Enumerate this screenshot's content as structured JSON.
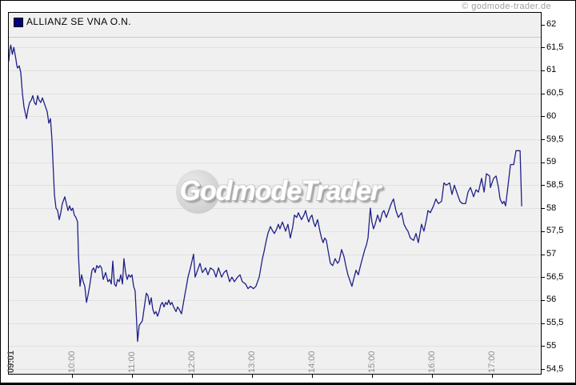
{
  "header": {
    "copyright": "© godmode-trader.de"
  },
  "legend": {
    "label": "ALLIANZ SE VNA O.N.",
    "swatch_color": "#000080"
  },
  "watermark": {
    "text": "GodmodeTrader"
  },
  "colors": {
    "plot_background": "#f0f0f0",
    "plot_border": "#000000",
    "gridline": "#e0e0e0",
    "price_line": "#20208a",
    "tick_mark": "#000000",
    "y_label": "#000000",
    "x_label": "#8f8f8f",
    "x_start_label": "#4a4a4a",
    "copyright": "#9e9e9e"
  },
  "chart_data": {
    "type": "line",
    "title": "ALLIANZ SE VNA O.N.",
    "xlabel": "",
    "ylabel": "",
    "grid": "horizontal",
    "legend_position": "top-left",
    "x_axis": {
      "unit": "time-of-day",
      "start_tick_label": "09:01",
      "tick_labels": [
        "10:00",
        "11:00",
        "12:00",
        "13:00",
        "14:00",
        "15:00",
        "16:00",
        "17:00"
      ],
      "tick_minutes": [
        60,
        120,
        180,
        240,
        300,
        360,
        420,
        480
      ],
      "range_minutes": [
        1,
        510
      ]
    },
    "y_axis": {
      "unit": "EUR",
      "decimal_separator": ",",
      "tick_labels": [
        "62",
        "61,5",
        "61",
        "60,5",
        "60",
        "59,5",
        "59",
        "58,5",
        "58",
        "57,5",
        "57",
        "56,5",
        "56",
        "55,5",
        "55",
        "54,5"
      ],
      "tick_values": [
        62,
        61.5,
        61,
        60.5,
        60,
        59.5,
        59,
        58.5,
        58,
        57.5,
        57,
        56.5,
        56,
        55.5,
        55,
        54.5
      ],
      "range": [
        54.5,
        62
      ]
    },
    "series": [
      {
        "name": "ALLIANZ SE VNA O.N.",
        "color": "#20208a",
        "points_format": "[minutes_after_09:00, price]",
        "points": [
          [
            1,
            61.2
          ],
          [
            2,
            61.45
          ],
          [
            3,
            61.55
          ],
          [
            4.5,
            61.35
          ],
          [
            6,
            61.5
          ],
          [
            8,
            61.25
          ],
          [
            9,
            61.1
          ],
          [
            9.7,
            61.05
          ],
          [
            11.3,
            61.1
          ],
          [
            12.9,
            60.95
          ],
          [
            14.5,
            60.5
          ],
          [
            16.1,
            60.2
          ],
          [
            18.5,
            59.95
          ],
          [
            20,
            60.15
          ],
          [
            21.6,
            60.3
          ],
          [
            23.2,
            60.35
          ],
          [
            24.8,
            60.45
          ],
          [
            26.4,
            60.3
          ],
          [
            28,
            60.25
          ],
          [
            29.6,
            60.45
          ],
          [
            31.1,
            60.35
          ],
          [
            32.7,
            60.3
          ],
          [
            34.3,
            60.4
          ],
          [
            35.9,
            60.3
          ],
          [
            37.5,
            60.2
          ],
          [
            39.1,
            60.1
          ],
          [
            40.7,
            59.85
          ],
          [
            42.3,
            59.95
          ],
          [
            43.8,
            59.5
          ],
          [
            45.4,
            58.7
          ],
          [
            46.2,
            58.3
          ],
          [
            47.8,
            58.0
          ],
          [
            49.4,
            57.95
          ],
          [
            51,
            57.75
          ],
          [
            52.6,
            57.9
          ],
          [
            54.1,
            58.1
          ],
          [
            56.5,
            58.25
          ],
          [
            58.1,
            58.1
          ],
          [
            59.7,
            57.95
          ],
          [
            61.3,
            58.05
          ],
          [
            62.9,
            57.95
          ],
          [
            64.5,
            58.0
          ],
          [
            66,
            57.85
          ],
          [
            67.6,
            57.8
          ],
          [
            69.2,
            57.7
          ],
          [
            70,
            57.0
          ],
          [
            71.6,
            56.3
          ],
          [
            73.2,
            56.55
          ],
          [
            74.8,
            56.4
          ],
          [
            76.4,
            56.3
          ],
          [
            78,
            55.95
          ],
          [
            79.5,
            56.1
          ],
          [
            81.1,
            56.3
          ],
          [
            83.5,
            56.65
          ],
          [
            85.1,
            56.7
          ],
          [
            86.7,
            56.6
          ],
          [
            88.3,
            56.75
          ],
          [
            89.9,
            56.7
          ],
          [
            91.4,
            56.75
          ],
          [
            93,
            56.7
          ],
          [
            94.6,
            56.45
          ],
          [
            97,
            56.6
          ],
          [
            99.4,
            56.4
          ],
          [
            101,
            56.45
          ],
          [
            102.6,
            56.35
          ],
          [
            104.1,
            56.85
          ],
          [
            105.7,
            56.35
          ],
          [
            107.3,
            56.3
          ],
          [
            108.9,
            56.45
          ],
          [
            110.5,
            56.4
          ],
          [
            112.1,
            56.55
          ],
          [
            113.7,
            56.35
          ],
          [
            115.2,
            56.9
          ],
          [
            116.8,
            56.6
          ],
          [
            118.4,
            56.45
          ],
          [
            120,
            56.55
          ],
          [
            121.6,
            56.5
          ],
          [
            123.2,
            56.55
          ],
          [
            124.8,
            56.3
          ],
          [
            126.3,
            56.2
          ],
          [
            127.1,
            55.85
          ],
          [
            128.7,
            55.1
          ],
          [
            130.3,
            55.45
          ],
          [
            131.9,
            55.5
          ],
          [
            133.5,
            55.55
          ],
          [
            135.1,
            55.8
          ],
          [
            137.4,
            56.15
          ],
          [
            139,
            56.1
          ],
          [
            140.6,
            55.9
          ],
          [
            142.2,
            56.05
          ],
          [
            143.8,
            55.8
          ],
          [
            145.4,
            55.7
          ],
          [
            147,
            55.75
          ],
          [
            148.5,
            55.65
          ],
          [
            150.1,
            55.75
          ],
          [
            151.7,
            55.9
          ],
          [
            153.3,
            55.95
          ],
          [
            154.9,
            55.85
          ],
          [
            156.5,
            55.95
          ],
          [
            158.1,
            55.9
          ],
          [
            159.6,
            56.0
          ],
          [
            161.2,
            55.9
          ],
          [
            162.8,
            55.95
          ],
          [
            164.4,
            55.85
          ],
          [
            166.8,
            55.75
          ],
          [
            168.4,
            55.85
          ],
          [
            170,
            55.8
          ],
          [
            172.3,
            55.7
          ],
          [
            174.7,
            56.0
          ],
          [
            177.1,
            56.3
          ],
          [
            178.7,
            56.5
          ],
          [
            181.1,
            56.7
          ],
          [
            182.7,
            56.85
          ],
          [
            184.3,
            57.0
          ],
          [
            185.8,
            56.5
          ],
          [
            188.2,
            56.65
          ],
          [
            190.6,
            56.8
          ],
          [
            193,
            56.6
          ],
          [
            196.2,
            56.7
          ],
          [
            198.5,
            56.55
          ],
          [
            200.9,
            56.7
          ],
          [
            204.1,
            56.65
          ],
          [
            206.5,
            56.5
          ],
          [
            208.9,
            56.7
          ],
          [
            212,
            56.5
          ],
          [
            214.4,
            56.6
          ],
          [
            216.8,
            56.65
          ],
          [
            220,
            56.4
          ],
          [
            222.3,
            56.5
          ],
          [
            224.7,
            56.4
          ],
          [
            227.9,
            56.5
          ],
          [
            230.3,
            56.55
          ],
          [
            232.6,
            56.4
          ],
          [
            235.8,
            56.35
          ],
          [
            238.2,
            56.25
          ],
          [
            240.6,
            56.3
          ],
          [
            243.7,
            56.25
          ],
          [
            246.1,
            56.3
          ],
          [
            249.3,
            56.5
          ],
          [
            252.5,
            56.9
          ],
          [
            254.1,
            57.05
          ],
          [
            256.4,
            57.3
          ],
          [
            258,
            57.45
          ],
          [
            260.4,
            57.6
          ],
          [
            262.8,
            57.5
          ],
          [
            264.4,
            57.45
          ],
          [
            266.7,
            57.55
          ],
          [
            268.3,
            57.65
          ],
          [
            269.9,
            57.55
          ],
          [
            272.3,
            57.7
          ],
          [
            275.5,
            57.5
          ],
          [
            277.8,
            57.65
          ],
          [
            280.2,
            57.35
          ],
          [
            282.6,
            57.6
          ],
          [
            284.2,
            57.85
          ],
          [
            286.6,
            57.8
          ],
          [
            288.1,
            57.9
          ],
          [
            291.3,
            57.75
          ],
          [
            293.7,
            57.85
          ],
          [
            295.3,
            57.95
          ],
          [
            296.9,
            57.8
          ],
          [
            298.4,
            57.7
          ],
          [
            300,
            57.8
          ],
          [
            301.6,
            57.85
          ],
          [
            303.2,
            57.7
          ],
          [
            304.8,
            57.6
          ],
          [
            307.2,
            57.75
          ],
          [
            309.5,
            57.5
          ],
          [
            311.1,
            57.35
          ],
          [
            312.7,
            57.25
          ],
          [
            314.3,
            57.35
          ],
          [
            315.9,
            57.3
          ],
          [
            317.5,
            57.1
          ],
          [
            319.9,
            56.8
          ],
          [
            322.2,
            56.75
          ],
          [
            324.6,
            56.9
          ],
          [
            327,
            56.8
          ],
          [
            328.6,
            56.85
          ],
          [
            331,
            57.1
          ],
          [
            333.3,
            56.95
          ],
          [
            335.7,
            56.7
          ],
          [
            337.3,
            56.55
          ],
          [
            339.7,
            56.4
          ],
          [
            341.3,
            56.3
          ],
          [
            342.9,
            56.45
          ],
          [
            345.3,
            56.65
          ],
          [
            347.6,
            56.55
          ],
          [
            349.2,
            56.7
          ],
          [
            351.6,
            56.9
          ],
          [
            354,
            57.1
          ],
          [
            355.6,
            57.2
          ],
          [
            357.2,
            57.35
          ],
          [
            359.5,
            58.0
          ],
          [
            361.1,
            57.7
          ],
          [
            362.7,
            57.55
          ],
          [
            364.3,
            57.65
          ],
          [
            366.7,
            57.85
          ],
          [
            369.1,
            57.7
          ],
          [
            371.4,
            57.9
          ],
          [
            373,
            57.95
          ],
          [
            375.4,
            57.8
          ],
          [
            377.8,
            57.95
          ],
          [
            380.2,
            58.1
          ],
          [
            382.5,
            58.2
          ],
          [
            384.9,
            57.95
          ],
          [
            387.3,
            57.8
          ],
          [
            388.9,
            57.85
          ],
          [
            390.5,
            57.9
          ],
          [
            392.9,
            57.65
          ],
          [
            395.2,
            57.55
          ],
          [
            396.8,
            57.5
          ],
          [
            399.2,
            57.35
          ],
          [
            402.4,
            57.3
          ],
          [
            404.8,
            57.45
          ],
          [
            407.1,
            57.25
          ],
          [
            410.3,
            57.65
          ],
          [
            412.7,
            57.5
          ],
          [
            415.1,
            57.75
          ],
          [
            416.7,
            57.95
          ],
          [
            419,
            57.9
          ],
          [
            422.2,
            58.05
          ],
          [
            424.6,
            58.2
          ],
          [
            427,
            58.1
          ],
          [
            430.2,
            58.15
          ],
          [
            432.5,
            58.55
          ],
          [
            434.9,
            58.5
          ],
          [
            438.1,
            58.55
          ],
          [
            440.5,
            58.3
          ],
          [
            442.9,
            58.5
          ],
          [
            446,
            58.3
          ],
          [
            448.4,
            58.15
          ],
          [
            450.8,
            58.1
          ],
          [
            454,
            58.1
          ],
          [
            456.4,
            58.35
          ],
          [
            458.8,
            58.45
          ],
          [
            461.9,
            58.25
          ],
          [
            464.3,
            58.4
          ],
          [
            466.7,
            58.35
          ],
          [
            469.9,
            58.65
          ],
          [
            472.3,
            58.35
          ],
          [
            474.6,
            58.75
          ],
          [
            477.8,
            58.7
          ],
          [
            478.6,
            58.45
          ],
          [
            481.8,
            58.65
          ],
          [
            484.2,
            58.7
          ],
          [
            486.6,
            58.45
          ],
          [
            488.2,
            58.2
          ],
          [
            490.5,
            58.1
          ],
          [
            492.1,
            58.15
          ],
          [
            493.7,
            58.05
          ],
          [
            496.1,
            58.5
          ],
          [
            498.5,
            58.95
          ],
          [
            501.7,
            58.95
          ],
          [
            504,
            59.25
          ],
          [
            508,
            59.25
          ],
          [
            509.6,
            58.05
          ]
        ]
      }
    ]
  }
}
